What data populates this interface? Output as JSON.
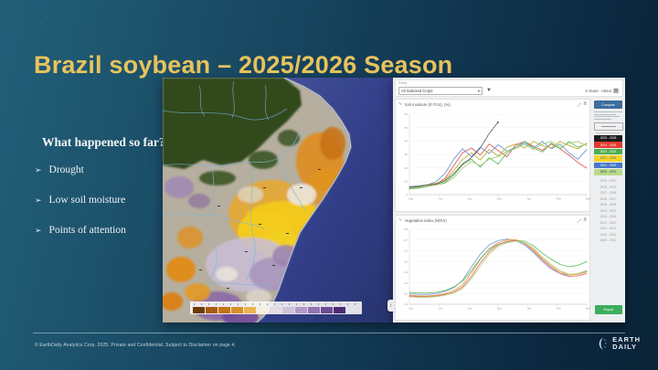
{
  "slide": {
    "title": "Brazil soybean – 2025/2026 Season",
    "intro": {
      "heading": "What happened so far?",
      "bullet_glyph": "➢",
      "bullets": [
        "Drought",
        "Low soil moisture",
        "Points of attention"
      ]
    },
    "footer": {
      "copyright": "© EarthDaily Analytics Corp. 2025. Private and Confidential. Subject to Disclaimer on page 4.",
      "logo": {
        "line1": "EARTH",
        "line2": "DAILY"
      }
    },
    "colors": {
      "title_gold": "#e8c35c",
      "background_left": "#226079",
      "background_right": "#0a2337"
    }
  },
  "map": {
    "legend_swatches": [
      "#6e3a05",
      "#a85a0e",
      "#c27413",
      "#d98f28",
      "#edb54d",
      "#f7efdf",
      "#e3dde3",
      "#cfc3da",
      "#b29ac9",
      "#9474b1",
      "#714b96",
      "#4d2a72"
    ]
  },
  "app_panel": {
    "fields_label": "Fields",
    "crop_selector": "All Selected Crops",
    "period_selector": "5 Years - About",
    "compare_button": "Compare",
    "export_button": "Export",
    "season_legend": [
      {
        "label": "2025 - 2026",
        "color": "#1c1c1c",
        "text": "#ffffff"
      },
      {
        "label": "2024 - 2025",
        "color": "#e23b2e",
        "text": "#ffffff"
      },
      {
        "label": "2023 - 2024",
        "color": "#4cae4f",
        "text": "#ffffff"
      },
      {
        "label": "2022 - 2023",
        "color": "#f6d32b",
        "text": "#666666"
      },
      {
        "label": "2021 - 2022",
        "color": "#4677c8",
        "text": "#ffffff"
      },
      {
        "label": "2020 - 2021",
        "color": "#b7d98b",
        "text": "#444444"
      }
    ],
    "year_list": [
      "2019 - 2020",
      "2018 - 2019",
      "2017 - 2018",
      "2016 - 2017",
      "2015 - 2016",
      "2014 - 2015",
      "2013 - 2014",
      "2012 - 2013",
      "2011 - 2012",
      "2010 - 2011",
      "2009 - 2010"
    ]
  },
  "chart_data": [
    {
      "type": "line",
      "title": "Soil moisture (0-7cm), (%)",
      "x_ticks": [
        "Sep",
        "Oct",
        "Nov",
        "Dec",
        "Jan",
        "Feb",
        "Mar"
      ],
      "y_ticks": [
        "60",
        "50",
        "40",
        "30",
        "20",
        "10",
        "0"
      ],
      "series": [
        {
          "name": "2024 - 2025",
          "color": "#e05c50",
          "values": [
            8,
            9,
            11,
            13,
            20,
            36,
            52,
            58,
            49,
            63,
            55,
            47,
            62,
            66,
            60,
            55,
            63,
            57,
            49,
            40,
            33
          ]
        },
        {
          "name": "2021 - 2022",
          "color": "#6e9ad8",
          "values": [
            10,
            11,
            12,
            16,
            26,
            44,
            57,
            47,
            59,
            51,
            62,
            54,
            59,
            64,
            58,
            66,
            57,
            63,
            52,
            44,
            56
          ]
        },
        {
          "name": "2023 - 2024",
          "color": "#67b96b",
          "values": [
            7,
            8,
            10,
            12,
            15,
            24,
            37,
            44,
            34,
            46,
            38,
            52,
            59,
            66,
            58,
            53,
            64,
            57,
            66,
            59,
            63
          ]
        },
        {
          "name": "2022 - 2023",
          "color": "#bfae3a",
          "values": [
            9,
            10,
            12,
            14,
            18,
            30,
            44,
            52,
            43,
            56,
            48,
            59,
            63,
            58,
            66,
            61,
            58,
            66,
            61,
            57,
            64
          ]
        },
        {
          "name": "2020 - 2021",
          "color": "#a8cf7f",
          "values": [
            8,
            9,
            11,
            12,
            14,
            21,
            33,
            41,
            36,
            44,
            47,
            54,
            57,
            62,
            56,
            63,
            66,
            59,
            64,
            66,
            61
          ]
        },
        {
          "name": "2025 - 2026",
          "color": "#4a4a4a",
          "dashed": true,
          "end_frac": 0.5,
          "values": [
            9,
            10,
            12,
            13,
            17,
            26,
            38,
            46,
            58,
            76,
            90
          ]
        }
      ]
    },
    {
      "type": "line",
      "title": "Vegetation index (NDVI)",
      "x_ticks": [
        "Sep",
        "Oct",
        "Nov",
        "Dec",
        "Jan",
        "Feb",
        "Mar"
      ],
      "y_ticks": [
        "0.8",
        "0.7",
        "0.6",
        "0.5",
        "0.4",
        "0.3",
        "0.2",
        "0.1"
      ],
      "series": [
        {
          "name": "2021 - 2022",
          "color": "#7ba7e0",
          "values": [
            14,
            13,
            13,
            14,
            17,
            22,
            32,
            50,
            67,
            79,
            85,
            87,
            85,
            79,
            69,
            57,
            47,
            41,
            39,
            41,
            44
          ]
        },
        {
          "name": "2022 - 2023",
          "color": "#e8a04c",
          "values": [
            12,
            11,
            11,
            12,
            14,
            18,
            26,
            42,
            60,
            74,
            82,
            86,
            86,
            82,
            73,
            61,
            51,
            43,
            39,
            40,
            43
          ]
        },
        {
          "name": "2023 - 2024",
          "color": "#6abf6e",
          "values": [
            16,
            15,
            15,
            16,
            18,
            23,
            31,
            45,
            61,
            73,
            80,
            83,
            85,
            84,
            78,
            68,
            60,
            53,
            50,
            52,
            57
          ]
        },
        {
          "name": "2024 - 2025",
          "color": "#e0716a",
          "values": [
            11,
            10,
            10,
            11,
            13,
            16,
            23,
            37,
            55,
            70,
            79,
            84,
            85,
            81,
            71,
            59,
            49,
            41,
            37,
            38,
            41
          ]
        },
        {
          "name": "2020 - 2021",
          "color": "#b9d98a",
          "values": [
            10,
            9,
            9,
            10,
            12,
            15,
            21,
            34,
            51,
            67,
            77,
            82,
            84,
            82,
            75,
            63,
            53,
            45,
            40,
            41,
            45
          ]
        }
      ]
    }
  ]
}
